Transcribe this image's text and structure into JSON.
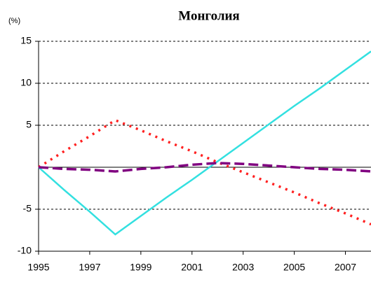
{
  "chart_data": {
    "type": "line",
    "title": "Монголия",
    "y_label": "(%)",
    "x": [
      1995,
      1996,
      1997,
      1998,
      1999,
      2000,
      2001,
      2002,
      2003,
      2004,
      2005,
      2006,
      2007,
      2008
    ],
    "xlim": [
      1995,
      2008
    ],
    "xticks": [
      1995,
      1997,
      1999,
      2001,
      2003,
      2005,
      2007
    ],
    "ylim": [
      -10,
      15
    ],
    "yticks": [
      -10,
      -5,
      5,
      10,
      15
    ],
    "grid": true,
    "series": [
      {
        "color": "#33e0e0",
        "dash": "solid",
        "values": [
          0,
          -2.7,
          -5.3,
          -8,
          -5.8,
          -3.6,
          -1.5,
          0.7,
          2.9,
          5.1,
          7.3,
          9.4,
          11.6,
          13.8
        ]
      },
      {
        "color": "#ff2020",
        "dash": "dotted",
        "values": [
          0,
          1.9,
          3.7,
          5.6,
          4.4,
          3.1,
          1.9,
          0.6,
          -0.6,
          -1.8,
          -3.0,
          -4.3,
          -5.5,
          -6.8
        ]
      },
      {
        "color": "#800080",
        "dash": "dashed",
        "values": [
          0,
          -0.2,
          -0.3,
          -0.5,
          -0.2,
          0,
          0.3,
          0.5,
          0.4,
          0.2,
          0,
          -0.2,
          -0.3,
          -0.5
        ]
      }
    ]
  }
}
